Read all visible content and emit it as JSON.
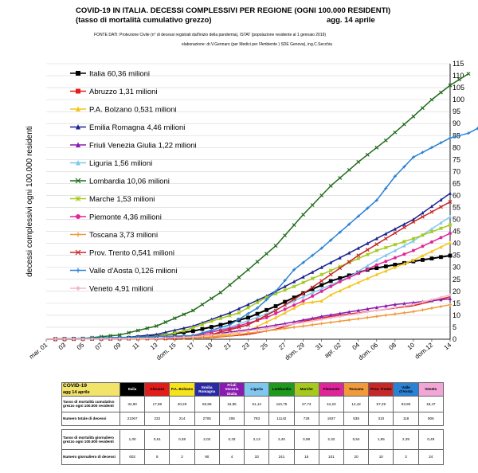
{
  "header": {
    "title": "COVID-19  IN ITALIA.  DECESSI COMPLESSIVI  PER REGIONE  (OGNI 100.000 RESIDENTI)",
    "subtitle": "(tasso di mortalità cumulativo grezzo)",
    "update": "agg. 14 aprile",
    "source": "FONTE DATI:  Protezione Civile (n° di decessi registrati dall'inizio della pandemia), ISTAT (popolazione residente al 1 gennaio 2019)",
    "elaboration": "elaborazione:  dr.V.Gennaro (per Medici per l'Ambiente  ) SDE Genova), ing.C.Secchia"
  },
  "chart_data": {
    "type": "line",
    "ylabel": "decessi complessivi ogni 100.000 residenti",
    "ylim": [
      0,
      115
    ],
    "yticks": [
      0,
      5,
      10,
      15,
      20,
      25,
      30,
      35,
      40,
      45,
      50,
      55,
      60,
      65,
      70,
      75,
      80,
      85,
      90,
      95,
      100,
      105,
      110,
      115
    ],
    "x_tick_labels": [
      "mar. 01",
      "03",
      "05",
      "07",
      "09",
      "11",
      "13",
      "dom. 15",
      "17",
      "19",
      "21",
      "23",
      "25",
      "27",
      "dom. 29",
      "31",
      "apr. 02",
      "04",
      "dom. 06",
      "08",
      "10",
      "dom.12",
      "14"
    ],
    "grid": "horizontal",
    "legend_position": "left",
    "series": [
      {
        "name": "Italia",
        "pop": "60,36 milioni",
        "color": "#000000",
        "marker": "square",
        "anchors": [
          [
            0,
            0
          ],
          [
            8,
            0.3
          ],
          [
            12,
            1.3
          ],
          [
            16,
            3.4
          ],
          [
            19,
            6.0
          ],
          [
            22,
            9.0
          ],
          [
            25,
            13.8
          ],
          [
            28,
            19.2
          ],
          [
            31,
            24.3
          ],
          [
            35,
            29.0
          ],
          [
            40,
            32.5
          ],
          [
            44,
            34.9
          ]
        ]
      },
      {
        "name": "Abruzzo",
        "pop": "1,31 milioni",
        "color": "#e21b1b",
        "marker": "none",
        "anchors": [
          [
            0,
            0
          ],
          [
            14,
            0.2
          ],
          [
            18,
            0.7
          ],
          [
            22,
            2.0
          ],
          [
            25,
            4.2
          ],
          [
            28,
            7.5
          ],
          [
            31,
            9.5
          ],
          [
            35,
            11.5
          ],
          [
            40,
            14.0
          ],
          [
            44,
            17.7
          ]
        ]
      },
      {
        "name": "P.A. Bolzano",
        "pop": "0,531 milioni",
        "color": "#f5c518",
        "marker": "triangle",
        "anchors": [
          [
            0,
            0
          ],
          [
            14,
            0.2
          ],
          [
            18,
            1.0
          ],
          [
            22,
            3.5
          ],
          [
            25,
            9.0
          ],
          [
            28,
            15.0
          ],
          [
            30,
            16.0
          ],
          [
            31,
            18.5
          ],
          [
            33,
            22.0
          ],
          [
            36,
            27.0
          ],
          [
            40,
            33.0
          ],
          [
            44,
            40.3
          ]
        ]
      },
      {
        "name": "Emilia Romagna",
        "pop": "4,46 milioni",
        "color": "#1a2390",
        "marker": "triangle",
        "anchors": [
          [
            0,
            0
          ],
          [
            8,
            0.5
          ],
          [
            12,
            2.0
          ],
          [
            16,
            5.5
          ],
          [
            20,
            11.0
          ],
          [
            24,
            18.0
          ],
          [
            28,
            26.0
          ],
          [
            32,
            34.0
          ],
          [
            36,
            42.0
          ],
          [
            40,
            50.0
          ],
          [
            44,
            60.9
          ]
        ]
      },
      {
        "name": "Friuli Venezia Giulia",
        "pop": "1,22 milioni",
        "color": "#8a1bb0",
        "marker": "triangle",
        "anchors": [
          [
            0,
            0
          ],
          [
            14,
            0.5
          ],
          [
            18,
            2.0
          ],
          [
            22,
            4.0
          ],
          [
            26,
            6.5
          ],
          [
            30,
            9.5
          ],
          [
            34,
            12.0
          ],
          [
            38,
            14.5
          ],
          [
            44,
            16.9
          ]
        ]
      },
      {
        "name": "Liguria",
        "pop": "1,56 milioni",
        "color": "#7fc7ee",
        "marker": "triangle",
        "anchors": [
          [
            0,
            0
          ],
          [
            12,
            0.3
          ],
          [
            16,
            1.5
          ],
          [
            20,
            5.0
          ],
          [
            24,
            10.5
          ],
          [
            27,
            16.0
          ],
          [
            30,
            21.0
          ],
          [
            33,
            26.0
          ],
          [
            36,
            33.0
          ],
          [
            40,
            41.0
          ],
          [
            44,
            51.1
          ]
        ]
      },
      {
        "name": "Lombardia",
        "pop": "10,06 milioni",
        "color": "#1f6b1a",
        "marker": "x",
        "anchors": [
          [
            0,
            0
          ],
          [
            4,
            0.3
          ],
          [
            8,
            1.8
          ],
          [
            12,
            5.5
          ],
          [
            16,
            12.0
          ],
          [
            19,
            19.5
          ],
          [
            22,
            29.0
          ],
          [
            25,
            39.0
          ],
          [
            28,
            52.0
          ],
          [
            31,
            64.0
          ],
          [
            34,
            74.0
          ],
          [
            37,
            83.0
          ],
          [
            40,
            93.0
          ],
          [
            42,
            100.0
          ],
          [
            44,
            106.0
          ],
          [
            46,
            110.8
          ]
        ]
      },
      {
        "name": "Marche",
        "pop": "1,53 milioni",
        "color": "#a6c91e",
        "marker": "star",
        "anchors": [
          [
            0,
            0
          ],
          [
            8,
            0.2
          ],
          [
            12,
            1.0
          ],
          [
            15,
            3.5
          ],
          [
            18,
            7.5
          ],
          [
            21,
            11.0
          ],
          [
            24,
            17.5
          ],
          [
            27,
            22.0
          ],
          [
            30,
            27.0
          ],
          [
            33,
            32.0
          ],
          [
            36,
            37.0
          ],
          [
            40,
            42.0
          ],
          [
            44,
            47.7
          ]
        ]
      },
      {
        "name": "Piemonte",
        "pop": "4,36 milioni",
        "color": "#e0259a",
        "marker": "circle",
        "anchors": [
          [
            0,
            0
          ],
          [
            12,
            0.3
          ],
          [
            16,
            1.5
          ],
          [
            20,
            4.5
          ],
          [
            24,
            9.0
          ],
          [
            28,
            16.0
          ],
          [
            32,
            24.0
          ],
          [
            36,
            31.0
          ],
          [
            40,
            37.0
          ],
          [
            44,
            44.2
          ]
        ]
      },
      {
        "name": "Toscana",
        "pop": "3,73 milioni",
        "color": "#f09a3c",
        "marker": "plus",
        "anchors": [
          [
            0,
            0
          ],
          [
            16,
            0.5
          ],
          [
            20,
            1.5
          ],
          [
            24,
            3.5
          ],
          [
            28,
            5.5
          ],
          [
            32,
            7.5
          ],
          [
            36,
            9.5
          ],
          [
            40,
            11.5
          ],
          [
            44,
            14.4
          ]
        ]
      },
      {
        "name": "Prov. Trento",
        "pop": "0,541 milioni",
        "color": "#c62828",
        "marker": "x",
        "anchors": [
          [
            0,
            0
          ],
          [
            14,
            0.3
          ],
          [
            18,
            2.0
          ],
          [
            22,
            6.0
          ],
          [
            25,
            12.0
          ],
          [
            28,
            19.0
          ],
          [
            31,
            27.0
          ],
          [
            34,
            35.0
          ],
          [
            37,
            42.0
          ],
          [
            40,
            49.0
          ],
          [
            44,
            57.3
          ]
        ]
      },
      {
        "name": "Valle d'Aosta",
        "pop": "0,126 milioni",
        "color": "#2a82d5",
        "marker": "plus",
        "anchors": [
          [
            0,
            0
          ],
          [
            16,
            1.5
          ],
          [
            20,
            6.0
          ],
          [
            23,
            13.0
          ],
          [
            25,
            20.0
          ],
          [
            27,
            29.0
          ],
          [
            30,
            38.0
          ],
          [
            33,
            48.0
          ],
          [
            36,
            58.0
          ],
          [
            38,
            68.0
          ],
          [
            40,
            76.0
          ],
          [
            42,
            80.0
          ],
          [
            44,
            84.0
          ],
          [
            46,
            86.0
          ],
          [
            48,
            90.0
          ],
          [
            50,
            93.9
          ]
        ]
      },
      {
        "name": "Veneto",
        "pop": "4,91 milioni",
        "color": "#f2b8c8",
        "marker": "diamond",
        "anchors": [
          [
            0,
            0
          ],
          [
            12,
            0.3
          ],
          [
            16,
            1.0
          ],
          [
            20,
            2.5
          ],
          [
            24,
            4.5
          ],
          [
            28,
            7.0
          ],
          [
            32,
            9.5
          ],
          [
            36,
            12.0
          ],
          [
            40,
            14.5
          ],
          [
            44,
            18.5
          ]
        ]
      }
    ]
  },
  "table": {
    "corner": "COVID-19",
    "corner_sub": "agg      14    aprile",
    "regions": [
      "Italia",
      "Abruzzo",
      "P.A. Bolzano",
      "Emilia Romagna",
      "Friuli Venezia Giulia",
      "Liguria",
      "Lombardia",
      "Marche",
      "Piemonte",
      "Toscana",
      "Prov. Trento",
      "Valle d'Aosta",
      "Veneto"
    ],
    "rows": [
      {
        "label": "Tasso di mortalità cumulativo grezzo ogni 100.000 residenti",
        "values": [
          "34,90",
          "17,69",
          "40,29",
          "60,86",
          "16,85",
          "51,14",
          "110,75",
          "47,73",
          "44,23",
          "14,42",
          "57,29",
          "93,90",
          "18,47"
        ]
      },
      {
        "label": "Numero totale di decessi",
        "values": [
          "21067",
          "232",
          "214",
          "2705",
          "206",
          "793",
          "11142",
          "728",
          "1927",
          "538",
          "310",
          "118",
          "906"
        ]
      },
      {
        "label": "Tasso di mortalità giornaliero grezzo ogni 100.000 residenti",
        "values": [
          "1,00",
          "0,61",
          "0,38",
          "2,02",
          "0,33",
          "2,13",
          "2,40",
          "0,98",
          "2,32",
          "0,54",
          "1,85",
          "2,39",
          "0,49"
        ]
      },
      {
        "label": "Numero giornaliero di decessi",
        "values": [
          "602",
          "8",
          "2",
          "90",
          "4",
          "33",
          "241",
          "15",
          "101",
          "20",
          "10",
          "3",
          "24"
        ]
      }
    ]
  }
}
